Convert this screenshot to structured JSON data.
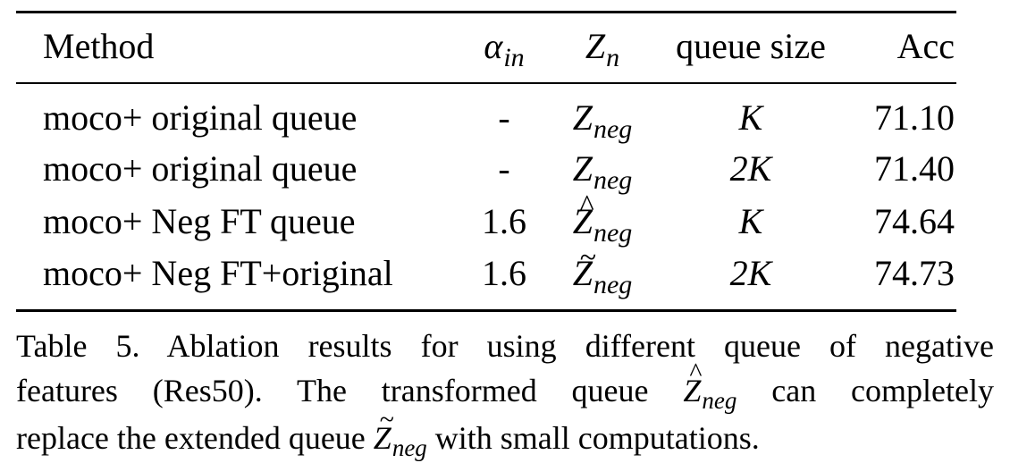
{
  "table": {
    "headers": {
      "method": "Method",
      "alpha": "α",
      "alpha_sub": "in",
      "zn": "Z",
      "zn_sub": "n",
      "queue": "queue size",
      "acc": "Acc"
    },
    "rows": [
      {
        "method": "moco+ original queue",
        "alpha": "-",
        "z": "Z",
        "z_accent": "",
        "z_sub": "neg",
        "queue": "K",
        "acc": "71.10"
      },
      {
        "method": "moco+ original queue",
        "alpha": "-",
        "z": "Z",
        "z_accent": "",
        "z_sub": "neg",
        "queue": "2K",
        "acc": "71.40"
      },
      {
        "method": "moco+ Neg FT queue",
        "alpha": "1.6",
        "z": "Z",
        "z_accent": "^",
        "z_sub": "neg",
        "queue": "K",
        "acc": "74.64"
      },
      {
        "method": "moco+ Neg FT+original",
        "alpha": "1.6",
        "z": "Z",
        "z_accent": "~",
        "z_sub": "neg",
        "queue": "2K",
        "acc": "74.73"
      }
    ]
  },
  "caption": {
    "line1": "Table 5.   Ablation results for using different queue of negative",
    "line2_a": "features (Res50).  The transformed queue ",
    "line2_z": "Z",
    "line2_accent": "^",
    "line2_sub": "neg",
    "line2_b": " can completely",
    "line3_a": "replace the extended queue ",
    "line3_z": "Z",
    "line3_accent": "~",
    "line3_sub": "neg",
    "line3_b": " with small computations."
  }
}
